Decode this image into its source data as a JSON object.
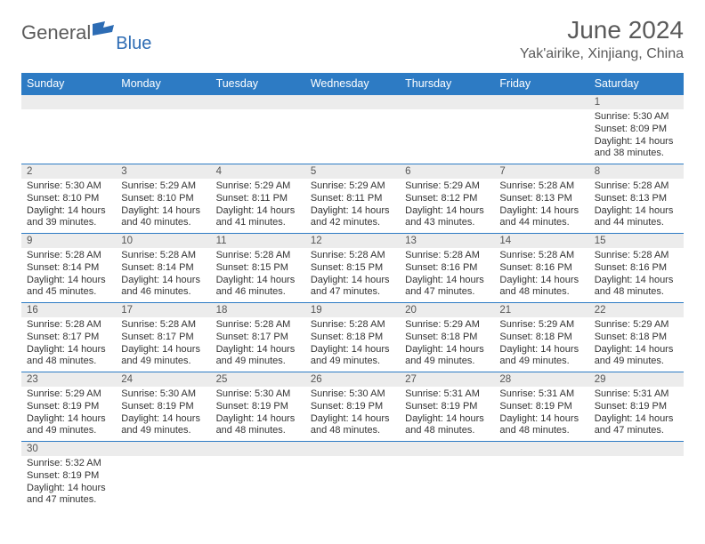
{
  "logo": {
    "part1": "General",
    "part2": "Blue"
  },
  "title": "June 2024",
  "location": "Yak'airike, Xinjiang, China",
  "colors": {
    "header_bg": "#2d7bc4",
    "header_text": "#ffffff",
    "daynum_bg": "#ececec",
    "border": "#2d7bc4",
    "text": "#333333",
    "logo_gray": "#5a5a5a",
    "logo_blue": "#2d6cb4"
  },
  "fonts": {
    "family": "Arial",
    "body_size_pt": 8.5,
    "title_size_pt": 21
  },
  "weekdays": [
    "Sunday",
    "Monday",
    "Tuesday",
    "Wednesday",
    "Thursday",
    "Friday",
    "Saturday"
  ],
  "layout": {
    "columns": 7,
    "rows": 6,
    "first_weekday": "Sunday",
    "month_start_column": 6
  },
  "days": {
    "1": {
      "sunrise": "5:30 AM",
      "sunset": "8:09 PM",
      "daylight": "14 hours and 38 minutes."
    },
    "2": {
      "sunrise": "5:30 AM",
      "sunset": "8:10 PM",
      "daylight": "14 hours and 39 minutes."
    },
    "3": {
      "sunrise": "5:29 AM",
      "sunset": "8:10 PM",
      "daylight": "14 hours and 40 minutes."
    },
    "4": {
      "sunrise": "5:29 AM",
      "sunset": "8:11 PM",
      "daylight": "14 hours and 41 minutes."
    },
    "5": {
      "sunrise": "5:29 AM",
      "sunset": "8:11 PM",
      "daylight": "14 hours and 42 minutes."
    },
    "6": {
      "sunrise": "5:29 AM",
      "sunset": "8:12 PM",
      "daylight": "14 hours and 43 minutes."
    },
    "7": {
      "sunrise": "5:28 AM",
      "sunset": "8:13 PM",
      "daylight": "14 hours and 44 minutes."
    },
    "8": {
      "sunrise": "5:28 AM",
      "sunset": "8:13 PM",
      "daylight": "14 hours and 44 minutes."
    },
    "9": {
      "sunrise": "5:28 AM",
      "sunset": "8:14 PM",
      "daylight": "14 hours and 45 minutes."
    },
    "10": {
      "sunrise": "5:28 AM",
      "sunset": "8:14 PM",
      "daylight": "14 hours and 46 minutes."
    },
    "11": {
      "sunrise": "5:28 AM",
      "sunset": "8:15 PM",
      "daylight": "14 hours and 46 minutes."
    },
    "12": {
      "sunrise": "5:28 AM",
      "sunset": "8:15 PM",
      "daylight": "14 hours and 47 minutes."
    },
    "13": {
      "sunrise": "5:28 AM",
      "sunset": "8:16 PM",
      "daylight": "14 hours and 47 minutes."
    },
    "14": {
      "sunrise": "5:28 AM",
      "sunset": "8:16 PM",
      "daylight": "14 hours and 48 minutes."
    },
    "15": {
      "sunrise": "5:28 AM",
      "sunset": "8:16 PM",
      "daylight": "14 hours and 48 minutes."
    },
    "16": {
      "sunrise": "5:28 AM",
      "sunset": "8:17 PM",
      "daylight": "14 hours and 48 minutes."
    },
    "17": {
      "sunrise": "5:28 AM",
      "sunset": "8:17 PM",
      "daylight": "14 hours and 49 minutes."
    },
    "18": {
      "sunrise": "5:28 AM",
      "sunset": "8:17 PM",
      "daylight": "14 hours and 49 minutes."
    },
    "19": {
      "sunrise": "5:28 AM",
      "sunset": "8:18 PM",
      "daylight": "14 hours and 49 minutes."
    },
    "20": {
      "sunrise": "5:29 AM",
      "sunset": "8:18 PM",
      "daylight": "14 hours and 49 minutes."
    },
    "21": {
      "sunrise": "5:29 AM",
      "sunset": "8:18 PM",
      "daylight": "14 hours and 49 minutes."
    },
    "22": {
      "sunrise": "5:29 AM",
      "sunset": "8:18 PM",
      "daylight": "14 hours and 49 minutes."
    },
    "23": {
      "sunrise": "5:29 AM",
      "sunset": "8:19 PM",
      "daylight": "14 hours and 49 minutes."
    },
    "24": {
      "sunrise": "5:30 AM",
      "sunset": "8:19 PM",
      "daylight": "14 hours and 49 minutes."
    },
    "25": {
      "sunrise": "5:30 AM",
      "sunset": "8:19 PM",
      "daylight": "14 hours and 48 minutes."
    },
    "26": {
      "sunrise": "5:30 AM",
      "sunset": "8:19 PM",
      "daylight": "14 hours and 48 minutes."
    },
    "27": {
      "sunrise": "5:31 AM",
      "sunset": "8:19 PM",
      "daylight": "14 hours and 48 minutes."
    },
    "28": {
      "sunrise": "5:31 AM",
      "sunset": "8:19 PM",
      "daylight": "14 hours and 48 minutes."
    },
    "29": {
      "sunrise": "5:31 AM",
      "sunset": "8:19 PM",
      "daylight": "14 hours and 47 minutes."
    },
    "30": {
      "sunrise": "5:32 AM",
      "sunset": "8:19 PM",
      "daylight": "14 hours and 47 minutes."
    }
  },
  "labels": {
    "sunrise": "Sunrise: ",
    "sunset": "Sunset: ",
    "daylight": "Daylight: "
  },
  "grid": [
    [
      null,
      null,
      null,
      null,
      null,
      null,
      "1"
    ],
    [
      "2",
      "3",
      "4",
      "5",
      "6",
      "7",
      "8"
    ],
    [
      "9",
      "10",
      "11",
      "12",
      "13",
      "14",
      "15"
    ],
    [
      "16",
      "17",
      "18",
      "19",
      "20",
      "21",
      "22"
    ],
    [
      "23",
      "24",
      "25",
      "26",
      "27",
      "28",
      "29"
    ],
    [
      "30",
      null,
      null,
      null,
      null,
      null,
      null
    ]
  ]
}
